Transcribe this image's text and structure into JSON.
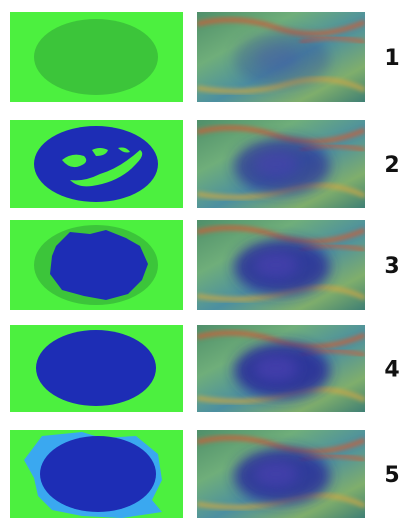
{
  "rows": [
    {
      "label": "1"
    },
    {
      "label": "2"
    },
    {
      "label": "3"
    },
    {
      "label": "4"
    },
    {
      "label": "5"
    }
  ]
}
